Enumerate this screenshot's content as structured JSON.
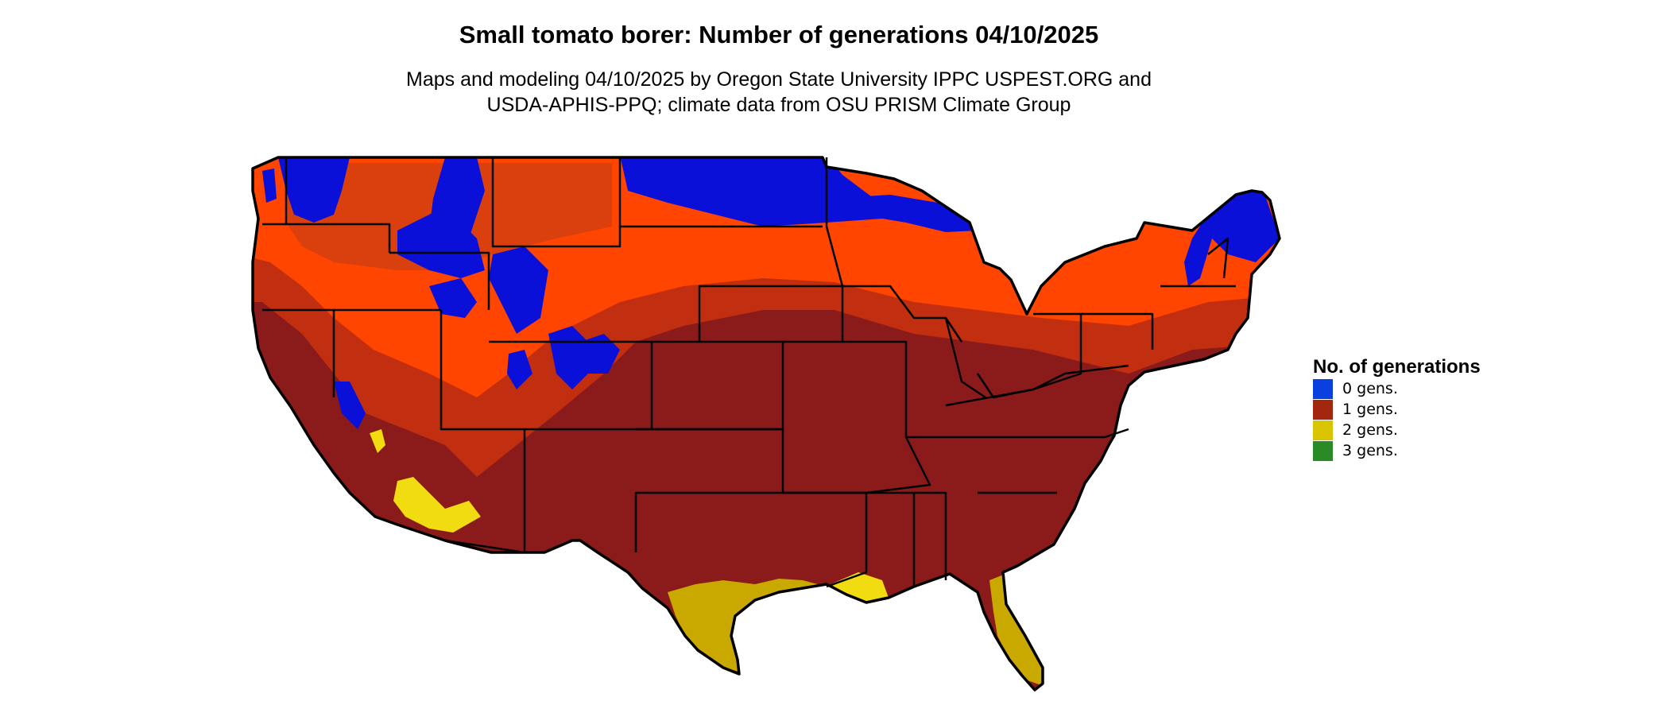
{
  "title": "Small tomato borer: Number of generations 04/10/2025",
  "subtitle_line1": "Maps and modeling 04/10/2025 by Oregon State University IPPC USPEST.ORG and",
  "subtitle_line2": "USDA-APHIS-PPQ; climate data from OSU PRISM Climate Group",
  "legend": {
    "title": "No. of generations",
    "items": [
      {
        "label": "0 gens.",
        "color": "#0a3fe0"
      },
      {
        "label": "1 gens.",
        "color": "#a3260f"
      },
      {
        "label": "2 gens.",
        "color": "#d9c400"
      },
      {
        "label": "3 gens.",
        "color": "#2a8a25"
      }
    ]
  },
  "map": {
    "colors": {
      "zero_gens": "#0a10d8",
      "one_gens_early": "#ff4500",
      "one_gens_mid": "#d9400e",
      "one_gens_late": "#8b1b1b",
      "two_gens": "#c9a800",
      "two_gens_bright": "#f0dc10",
      "three_gens": "#2a8a25",
      "border": "#000000"
    }
  }
}
